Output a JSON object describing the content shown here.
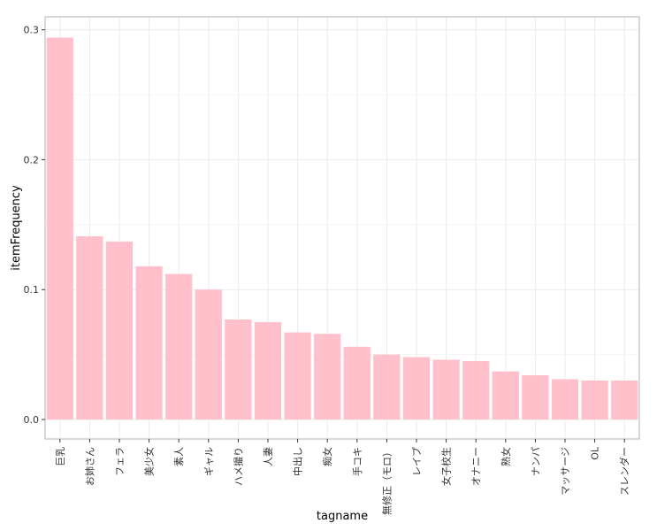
{
  "chart_data": {
    "type": "bar",
    "xlabel": "tagname",
    "ylabel": "itemFrequency",
    "ylim": [
      -0.015,
      0.31
    ],
    "yticks": [
      0.0,
      0.1,
      0.2,
      0.3
    ],
    "ytick_labels": [
      "0.0",
      "0.1",
      "0.2",
      "0.3"
    ],
    "grid": true,
    "bar_color": "#ffc0cb",
    "categories": [
      "巨乳",
      "お姉さん",
      "フェラ",
      "美少女",
      "素人",
      "ギャル",
      "ハメ撮り",
      "人妻",
      "中出し",
      "痴女",
      "手コキ",
      "無修正（モロ）",
      "レイプ",
      "女子校生",
      "オナニー",
      "熟女",
      "ナンパ",
      "マッサージ",
      "OL",
      "スレンダー"
    ],
    "values": [
      0.294,
      0.141,
      0.137,
      0.118,
      0.112,
      0.1,
      0.077,
      0.075,
      0.067,
      0.066,
      0.056,
      0.05,
      0.048,
      0.046,
      0.045,
      0.037,
      0.034,
      0.031,
      0.03,
      0.03
    ]
  }
}
